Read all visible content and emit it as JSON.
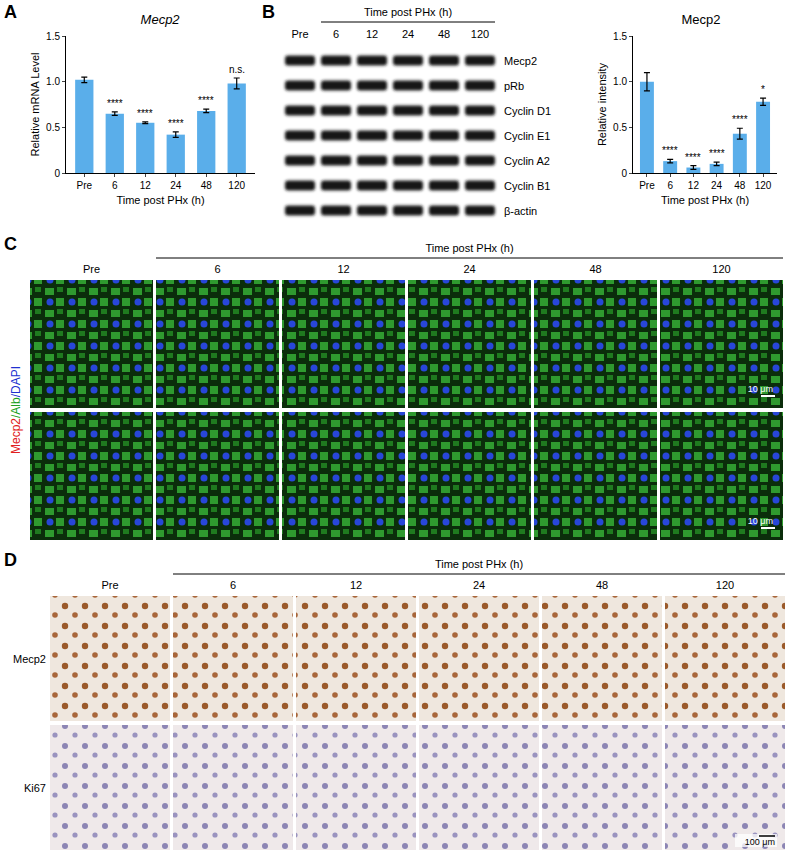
{
  "chart_data": [
    {
      "type": "bar",
      "panel": "A",
      "title": "Mecp2",
      "xlabel": "Time post PHx (h)",
      "ylabel": "Relative mRNA Level",
      "categories": [
        "Pre",
        "6",
        "12",
        "24",
        "48",
        "120"
      ],
      "values": [
        1.02,
        0.65,
        0.55,
        0.42,
        0.68,
        0.98
      ],
      "errors": [
        0.03,
        0.02,
        0.01,
        0.03,
        0.02,
        0.06
      ],
      "annotations": [
        null,
        "****",
        "****",
        "****",
        "****",
        "n.s."
      ],
      "color": "#5aaeea",
      "ylim": [
        0,
        1.5
      ],
      "yticks": [
        0,
        0.5,
        {
          "value": 1,
          "label": "1.0"
        },
        1.5
      ],
      "grid": false
    },
    {
      "type": "bar",
      "panel": "B",
      "title": "Mecp2",
      "xlabel": "Time post PHx (h)",
      "ylabel": "Relative intensity",
      "categories": [
        "Pre",
        "6",
        "12",
        "24",
        "48",
        "120"
      ],
      "values": [
        1.0,
        0.13,
        0.06,
        0.1,
        0.43,
        0.78
      ],
      "errors": [
        0.1,
        0.02,
        0.02,
        0.02,
        0.06,
        0.04
      ],
      "annotations": [
        null,
        "****",
        "****",
        "****",
        "****",
        "*"
      ],
      "color": "#5aaeea",
      "ylim": [
        0,
        1.5
      ],
      "yticks": [
        0,
        0.5,
        {
          "value": 1,
          "label": "1.0"
        },
        1.5
      ],
      "grid": false
    }
  ],
  "figure": {
    "blot": {
      "header": "Time post PHx (h)",
      "lanes": [
        "Pre",
        "6",
        "12",
        "24",
        "48",
        "120"
      ],
      "rows": [
        "Mecp2",
        "pRb",
        "Cyclin D1",
        "Cyclin E1",
        "Cyclin A2",
        "Cyclin B1",
        "β-actin"
      ]
    },
    "panel_C": {
      "panel": "C",
      "header": "Time post PHx (h)",
      "columns": [
        "Pre",
        "6",
        "12",
        "24",
        "48",
        "120"
      ],
      "stain_labels": [
        {
          "text": "Mecp2",
          "color": "#e02020"
        },
        {
          "text": "/Alb",
          "color": "#20a020"
        },
        {
          "text": "/DAPI",
          "color": "#2030d0"
        }
      ],
      "scale_bar": "10 μm"
    },
    "panel_D": {
      "panel": "D",
      "header": "Time post PHx (h)",
      "columns": [
        "Pre",
        "6",
        "12",
        "24",
        "48",
        "120"
      ],
      "rows": [
        "Mecp2",
        "Ki67"
      ],
      "scale_bar": "100 μm"
    }
  }
}
